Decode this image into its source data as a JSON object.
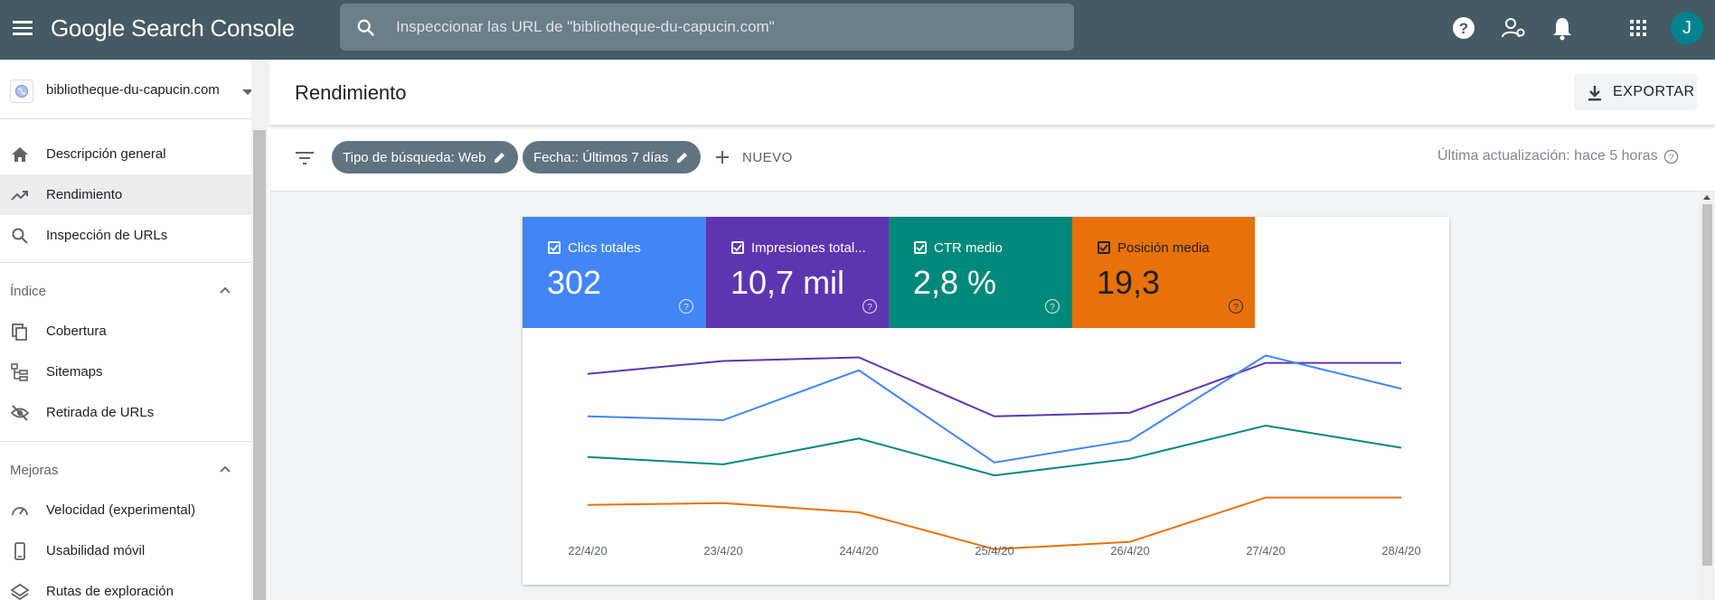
{
  "app": {
    "title": "Google Search Console",
    "avatar_initial": "J"
  },
  "search": {
    "placeholder": "Inspeccionar las URL de \"bibliotheque-du-capucin.com\""
  },
  "topbar_icons": [
    "help-icon",
    "manage-users-icon",
    "notifications-icon",
    "apps-icon"
  ],
  "sidebar": {
    "property": "bibliotheque-du-capucin.com",
    "items": [
      {
        "label": "Descripción general",
        "icon": "home-icon"
      },
      {
        "label": "Rendimiento",
        "icon": "trending-up-icon",
        "active": true
      },
      {
        "label": "Inspección de URLs",
        "icon": "search-icon"
      }
    ],
    "sections": [
      {
        "title": "Índice",
        "items": [
          {
            "label": "Cobertura",
            "icon": "coverage-icon"
          },
          {
            "label": "Sitemaps",
            "icon": "sitemap-icon"
          },
          {
            "label": "Retirada de URLs",
            "icon": "visibility-off-icon"
          }
        ]
      },
      {
        "title": "Mejoras",
        "items": [
          {
            "label": "Velocidad (experimental)",
            "icon": "speed-icon"
          },
          {
            "label": "Usabilidad móvil",
            "icon": "smartphone-icon"
          },
          {
            "label": "Rutas de exploración",
            "icon": "layers-icon"
          }
        ]
      }
    ]
  },
  "header": {
    "title": "Rendimiento",
    "export_label": "EXPORTAR"
  },
  "filters": {
    "chips": [
      "Tipo de búsqueda: Web",
      "Fecha:: Últimos 7 días"
    ],
    "new_label": "NUEVO",
    "last_update": "Última actualización: hace 5 horas"
  },
  "metrics": [
    {
      "label": "Clics totales",
      "value": "302",
      "color": "#4285f4",
      "text_color": "#ffffff"
    },
    {
      "label": "Impresiones total...",
      "value": "10,7 mil",
      "color": "#5e35b1",
      "text_color": "#ffffff"
    },
    {
      "label": "CTR medio",
      "value": "2,8 %",
      "color": "#00897b",
      "text_color": "#ffffff"
    },
    {
      "label": "Posición media",
      "value": "19,3",
      "color": "#e8710a",
      "text_color": "#202124"
    }
  ],
  "chart_data": {
    "type": "line",
    "x": [
      "22/4/20",
      "23/4/20",
      "24/4/20",
      "25/4/20",
      "26/4/20",
      "27/4/20",
      "28/4/20"
    ],
    "series": [
      {
        "color": "#5e35b1",
        "values": [
          0.8,
          0.87,
          0.89,
          0.57,
          0.59,
          0.86,
          0.86
        ]
      },
      {
        "color": "#4285f4",
        "values": [
          0.57,
          0.55,
          0.82,
          0.32,
          0.44,
          0.9,
          0.72
        ]
      },
      {
        "color": "#00897b",
        "values": [
          0.35,
          0.31,
          0.45,
          0.25,
          0.34,
          0.52,
          0.4
        ]
      },
      {
        "color": "#e8710a",
        "values": [
          0.09,
          0.1,
          0.05,
          -0.15,
          -0.11,
          0.13,
          0.13
        ]
      }
    ],
    "grid": false,
    "legend": "none"
  }
}
